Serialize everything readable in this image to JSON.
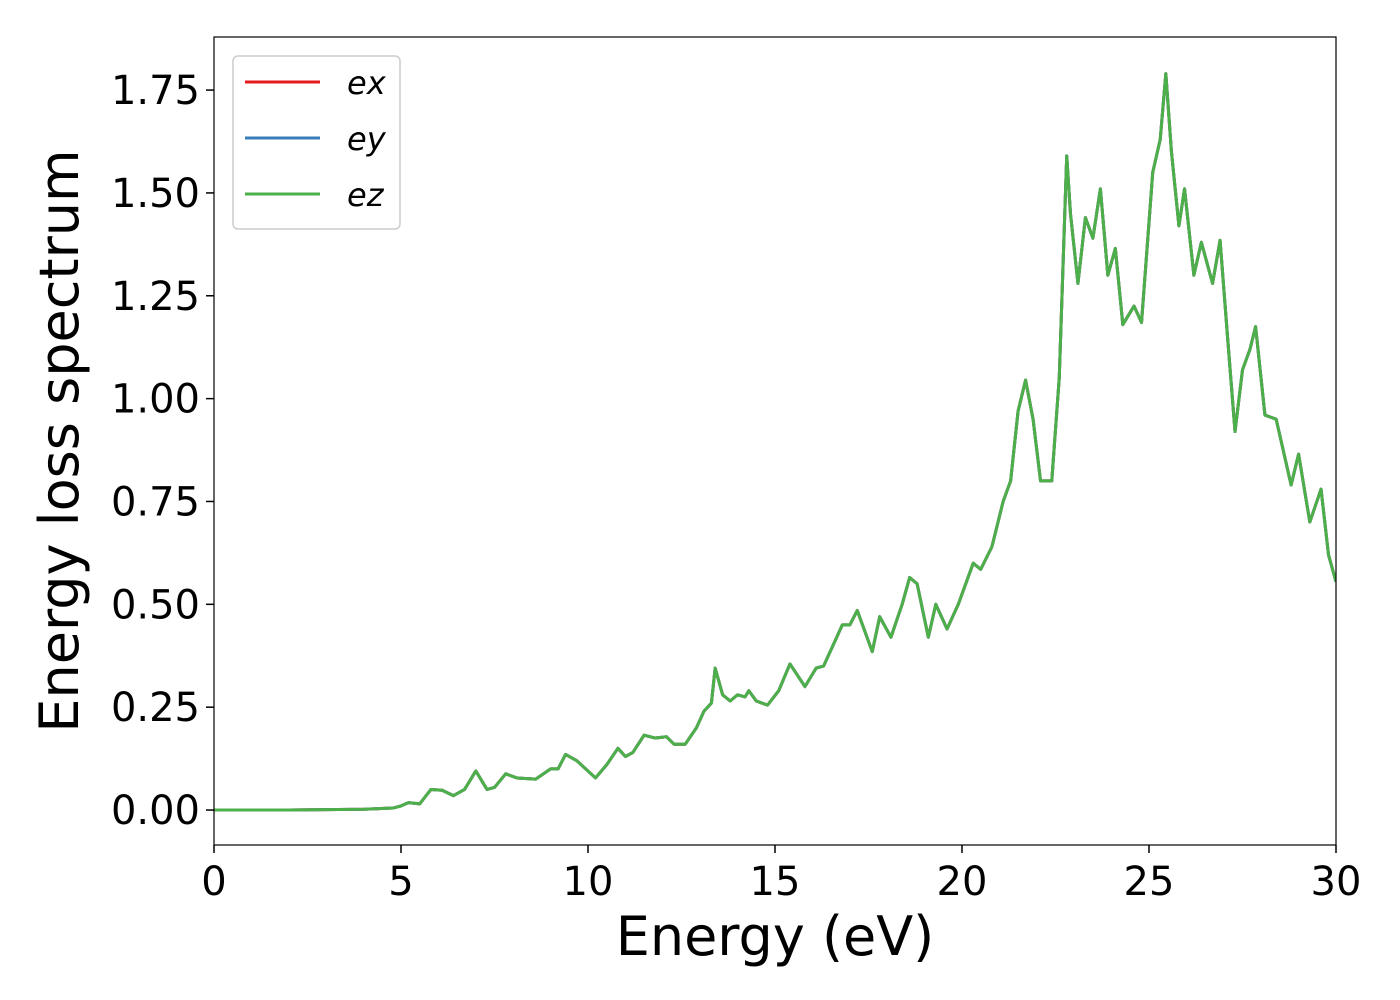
{
  "chart_data": {
    "type": "line",
    "xlabel": "Energy (eV)",
    "ylabel": "Energy loss spectrum",
    "xlim": [
      0,
      30
    ],
    "ylim": [
      -0.085,
      1.879
    ],
    "xticks": [
      0,
      5,
      10,
      15,
      20,
      25,
      30
    ],
    "yticks": [
      {
        "value": 0,
        "label": "0.00"
      },
      {
        "value": 0.25,
        "label": "0.25"
      },
      {
        "value": 0.5,
        "label": "0.50"
      },
      {
        "value": 0.75,
        "label": "0.75"
      },
      {
        "value": 1,
        "label": "1.00"
      },
      {
        "value": 1.25,
        "label": "1.25"
      },
      {
        "value": 1.5,
        "label": "1.50"
      },
      {
        "value": 1.75,
        "label": "1.75"
      }
    ],
    "legend": "upper left",
    "x": [
      0,
      2,
      4,
      4.8,
      5,
      5.2,
      5.5,
      5.8,
      6.1,
      6.4,
      6.7,
      7.0,
      7.3,
      7.5,
      7.8,
      8.1,
      8.6,
      9.0,
      9.2,
      9.4,
      9.7,
      10.2,
      10.5,
      10.8,
      11.0,
      11.2,
      11.5,
      11.8,
      12.1,
      12.3,
      12.6,
      12.9,
      13.1,
      13.3,
      13.4,
      13.6,
      13.8,
      14.0,
      14.2,
      14.3,
      14.5,
      14.8,
      15.1,
      15.4,
      15.8,
      16.1,
      16.3,
      16.6,
      16.8,
      17.0,
      17.2,
      17.5,
      17.6,
      17.8,
      18.1,
      18.4,
      18.6,
      18.8,
      19.1,
      19.3,
      19.6,
      19.9,
      20.3,
      20.5,
      20.8,
      21.1,
      21.3,
      21.5,
      21.7,
      21.9,
      22.1,
      22.4,
      22.6,
      22.8,
      22.9,
      23.1,
      23.3,
      23.5,
      23.7,
      23.9,
      24.1,
      24.3,
      24.6,
      24.8,
      25.1,
      25.3,
      25.45,
      25.6,
      25.8,
      25.95,
      26.2,
      26.4,
      26.7,
      26.9,
      27.1,
      27.3,
      27.5,
      27.7,
      27.85,
      28.1,
      28.4,
      28.8,
      29.0,
      29.3,
      29.6,
      29.8,
      30
    ],
    "series": [
      {
        "name": "ex",
        "color": "#e41a1c",
        "values": [
          0,
          0,
          0.002,
          0.005,
          0.01,
          0.018,
          0.015,
          0.05,
          0.048,
          0.035,
          0.05,
          0.095,
          0.05,
          0.055,
          0.088,
          0.078,
          0.075,
          0.1,
          0.1,
          0.135,
          0.12,
          0.078,
          0.11,
          0.15,
          0.13,
          0.14,
          0.182,
          0.175,
          0.178,
          0.16,
          0.16,
          0.2,
          0.24,
          0.26,
          0.345,
          0.28,
          0.265,
          0.28,
          0.275,
          0.29,
          0.265,
          0.255,
          0.29,
          0.355,
          0.3,
          0.345,
          0.35,
          0.41,
          0.45,
          0.45,
          0.485,
          0.41,
          0.385,
          0.47,
          0.42,
          0.5,
          0.565,
          0.55,
          0.42,
          0.5,
          0.44,
          0.5,
          0.6,
          0.585,
          0.64,
          0.75,
          0.8,
          0.97,
          1.045,
          0.95,
          0.8,
          0.8,
          1.05,
          1.59,
          1.45,
          1.28,
          1.44,
          1.39,
          1.51,
          1.3,
          1.365,
          1.18,
          1.225,
          1.185,
          1.55,
          1.63,
          1.79,
          1.6,
          1.42,
          1.51,
          1.3,
          1.38,
          1.28,
          1.385,
          1.15,
          0.92,
          1.07,
          1.12,
          1.175,
          0.96,
          0.95,
          0.79,
          0.865,
          0.7,
          0.78,
          0.62,
          0.555
        ]
      },
      {
        "name": "ey",
        "color": "#377eb8",
        "values": [
          0,
          0,
          0.002,
          0.005,
          0.01,
          0.018,
          0.015,
          0.05,
          0.048,
          0.035,
          0.05,
          0.095,
          0.05,
          0.055,
          0.088,
          0.078,
          0.075,
          0.1,
          0.1,
          0.135,
          0.12,
          0.078,
          0.11,
          0.15,
          0.13,
          0.14,
          0.182,
          0.175,
          0.178,
          0.16,
          0.16,
          0.2,
          0.24,
          0.26,
          0.345,
          0.28,
          0.265,
          0.28,
          0.275,
          0.29,
          0.265,
          0.255,
          0.29,
          0.355,
          0.3,
          0.345,
          0.35,
          0.41,
          0.45,
          0.45,
          0.485,
          0.41,
          0.385,
          0.47,
          0.42,
          0.5,
          0.565,
          0.55,
          0.42,
          0.5,
          0.44,
          0.5,
          0.6,
          0.585,
          0.64,
          0.75,
          0.8,
          0.97,
          1.045,
          0.95,
          0.8,
          0.8,
          1.05,
          1.59,
          1.45,
          1.28,
          1.44,
          1.39,
          1.51,
          1.3,
          1.365,
          1.18,
          1.225,
          1.185,
          1.55,
          1.63,
          1.79,
          1.6,
          1.42,
          1.51,
          1.3,
          1.38,
          1.28,
          1.385,
          1.15,
          0.92,
          1.07,
          1.12,
          1.175,
          0.96,
          0.95,
          0.79,
          0.865,
          0.7,
          0.78,
          0.62,
          0.555
        ]
      },
      {
        "name": "ez",
        "color": "#4daf4a",
        "values": [
          0,
          0,
          0.002,
          0.005,
          0.01,
          0.018,
          0.015,
          0.05,
          0.048,
          0.035,
          0.05,
          0.095,
          0.05,
          0.055,
          0.088,
          0.078,
          0.075,
          0.1,
          0.1,
          0.135,
          0.12,
          0.078,
          0.11,
          0.15,
          0.13,
          0.14,
          0.182,
          0.175,
          0.178,
          0.16,
          0.16,
          0.2,
          0.24,
          0.26,
          0.345,
          0.28,
          0.265,
          0.28,
          0.275,
          0.29,
          0.265,
          0.255,
          0.29,
          0.355,
          0.3,
          0.345,
          0.35,
          0.41,
          0.45,
          0.45,
          0.485,
          0.41,
          0.385,
          0.47,
          0.42,
          0.5,
          0.565,
          0.55,
          0.42,
          0.5,
          0.44,
          0.5,
          0.6,
          0.585,
          0.64,
          0.75,
          0.8,
          0.97,
          1.045,
          0.95,
          0.8,
          0.8,
          1.05,
          1.59,
          1.45,
          1.28,
          1.44,
          1.39,
          1.51,
          1.3,
          1.365,
          1.18,
          1.225,
          1.185,
          1.55,
          1.63,
          1.79,
          1.6,
          1.42,
          1.51,
          1.3,
          1.38,
          1.28,
          1.385,
          1.15,
          0.92,
          1.07,
          1.12,
          1.175,
          0.96,
          0.95,
          0.79,
          0.865,
          0.7,
          0.78,
          0.62,
          0.555
        ]
      }
    ]
  }
}
